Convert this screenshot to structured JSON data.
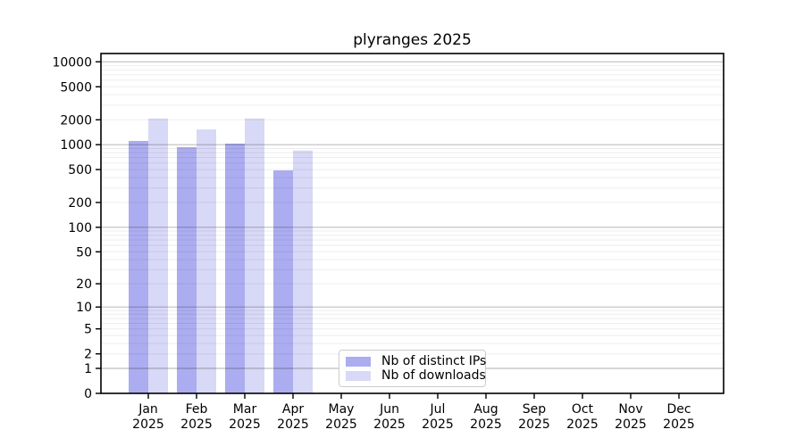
{
  "chart_data": {
    "type": "bar",
    "title": "plyranges 2025",
    "months": [
      "Jan",
      "Feb",
      "Mar",
      "Apr",
      "May",
      "Jun",
      "Jul",
      "Aug",
      "Sep",
      "Oct",
      "Nov",
      "Dec"
    ],
    "year": "2025",
    "categories": [
      "Jan 2025",
      "Feb 2025",
      "Mar 2025",
      "Apr 2025",
      "May 2025",
      "Jun 2025",
      "Jul 2025",
      "Aug 2025",
      "Sep 2025",
      "Oct 2025",
      "Nov 2025",
      "Dec 2025"
    ],
    "series": [
      {
        "name": "Nb of distinct IPs",
        "color": "#acacf0",
        "values": [
          1110,
          935,
          1030,
          490,
          null,
          null,
          null,
          null,
          null,
          null,
          null,
          null
        ]
      },
      {
        "name": "Nb of downloads",
        "color": "#d8d8f7",
        "values": [
          2070,
          1530,
          2070,
          850,
          null,
          null,
          null,
          null,
          null,
          null,
          null,
          null
        ]
      }
    ],
    "y_scale": "log1p",
    "y_ticks": [
      0,
      1,
      2,
      5,
      10,
      20,
      50,
      100,
      200,
      500,
      1000,
      2000,
      5000,
      10000
    ],
    "y_max": 12600,
    "ylim": [
      0,
      12600
    ],
    "xlabel": "",
    "ylabel": "",
    "grid": "on",
    "legend_position": "lower center",
    "colors": {
      "axis": "#000000",
      "major_grid": "rgba(0,0,0,0.25)",
      "minor_grid": "rgba(0,0,0,0.07)",
      "legend_border": "#cccccc"
    }
  }
}
